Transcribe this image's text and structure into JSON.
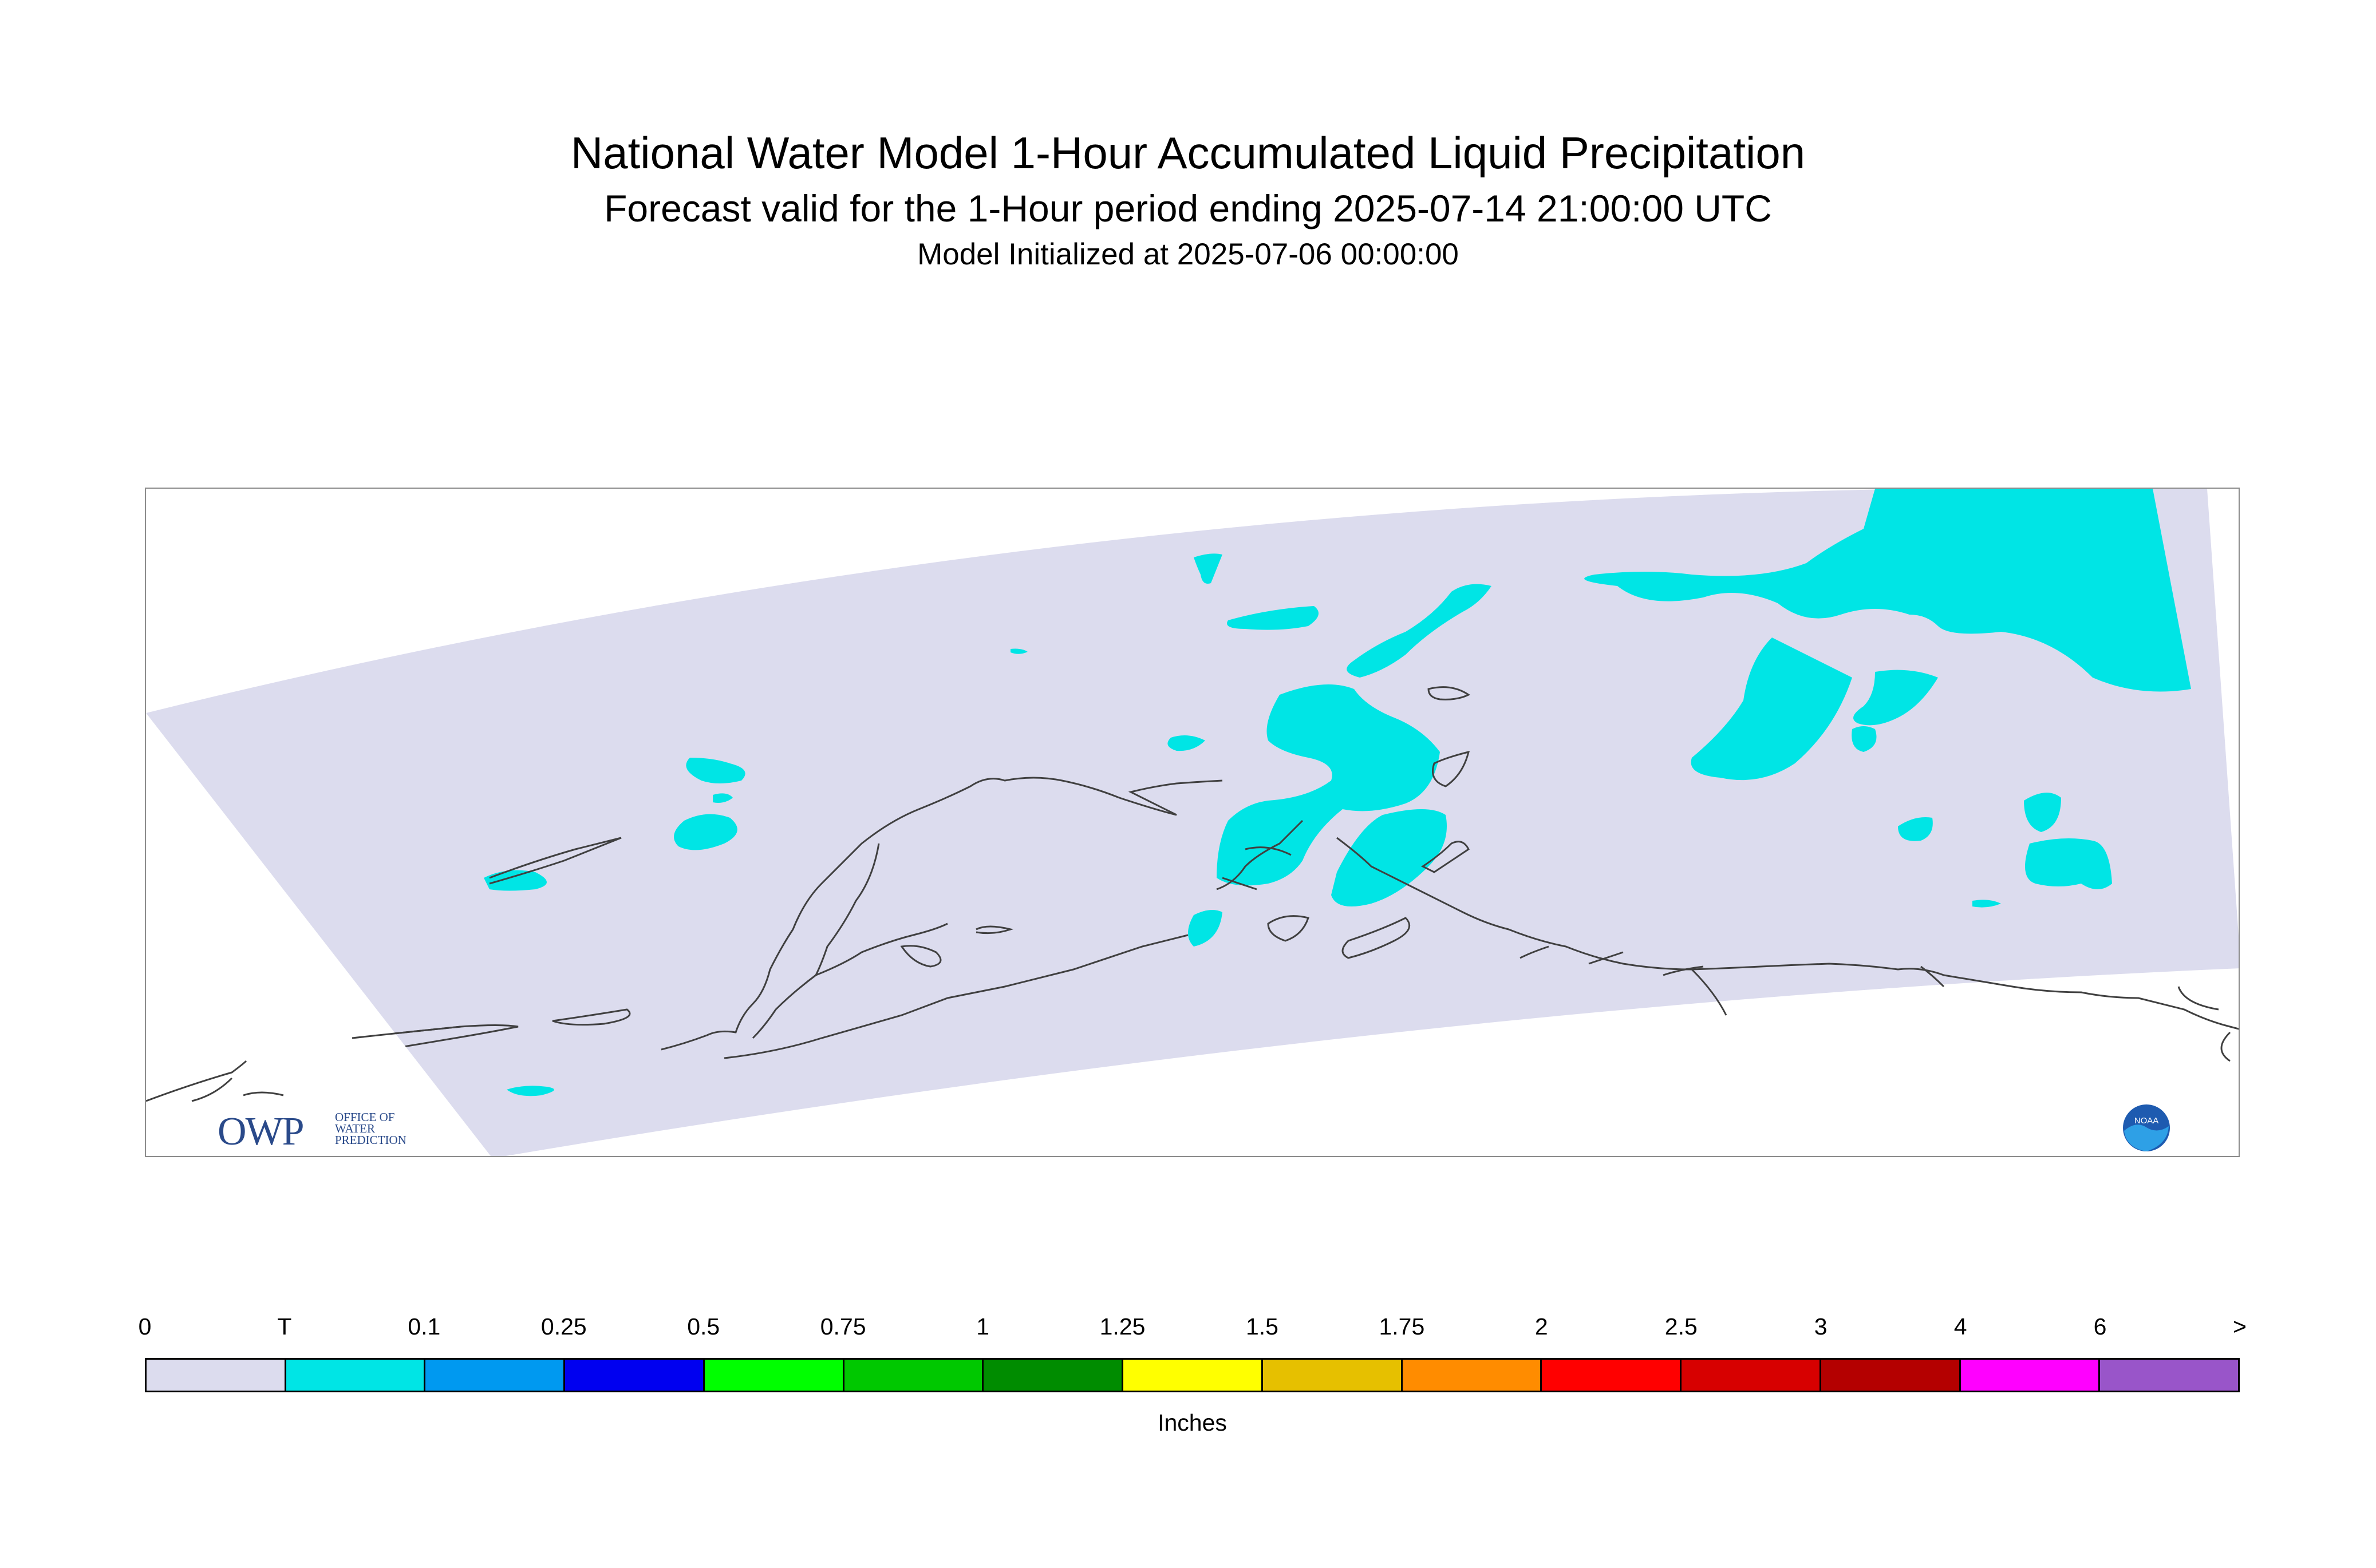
{
  "title": "National Water Model 1-Hour Accumulated Liquid Precipitation",
  "subtitle": "Forecast valid for the 1-Hour period ending 2025-07-14 21:00:00 UTC",
  "init_line": "Model Initialized at 2025-07-06 00:00:00",
  "map": {
    "domain_color": "#dcdcee",
    "precip_color": "#00e5e5",
    "coast_color": "#404040"
  },
  "logos": {
    "owp_text": "OWP",
    "owp_subtext": [
      "OFFICE OF",
      "WATER",
      "PREDICTION"
    ],
    "noaa_text": "NOAA"
  },
  "legend": {
    "units": "Inches",
    "labels": [
      "0",
      "T",
      "0.1",
      "0.25",
      "0.5",
      "0.75",
      "1",
      "1.25",
      "1.5",
      "1.75",
      "2",
      "2.5",
      "3",
      "4",
      "6",
      ">"
    ],
    "colors": [
      "#dcdcee",
      "#00e5e5",
      "#0099f0",
      "#0000f0",
      "#00ff00",
      "#00c800",
      "#008c00",
      "#ffff00",
      "#e6c000",
      "#ff8c00",
      "#ff0000",
      "#d70000",
      "#b40000",
      "#ff00ff",
      "#9955c9"
    ]
  }
}
